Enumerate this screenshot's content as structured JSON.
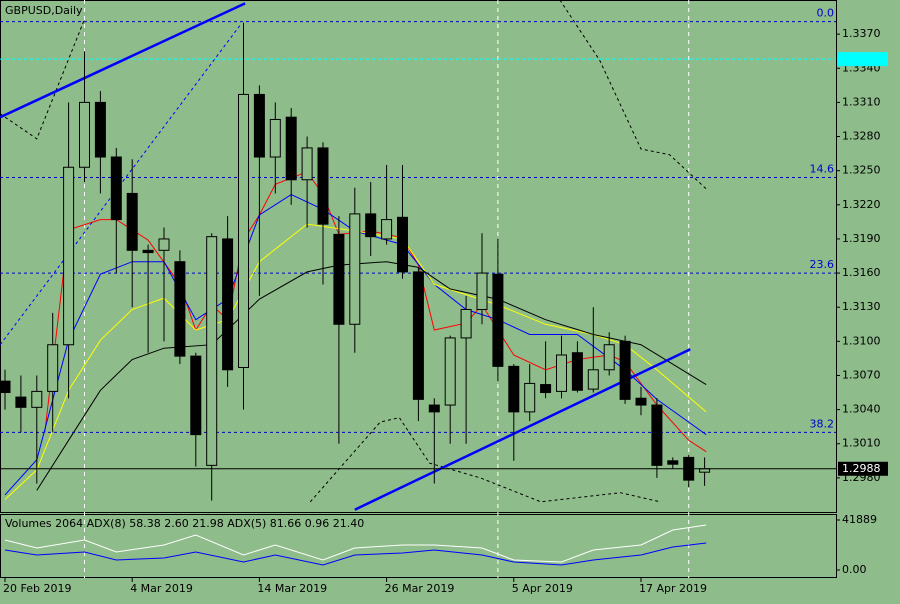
{
  "chart_data": [
    {
      "type": "candlestick",
      "title": "GBPUSD,Daily",
      "categories": [
        "20 Feb 2019",
        null,
        null,
        null,
        null,
        null,
        null,
        null,
        "4 Mar 2019",
        null,
        null,
        null,
        null,
        null,
        null,
        null,
        "14 Mar 2019",
        null,
        null,
        null,
        null,
        null,
        null,
        null,
        "26 Mar 2019",
        null,
        null,
        null,
        null,
        null,
        null,
        null,
        "5 Apr 2019",
        null,
        null,
        null,
        null,
        null,
        null,
        null,
        "17 Apr 2019",
        null,
        null,
        null,
        null
      ],
      "open": [
        1.3065,
        1.3051,
        1.3042,
        1.3056,
        1.3097,
        1.3253,
        1.331,
        1.3262,
        1.323,
        1.318,
        1.318,
        1.317,
        1.3087,
        1.2991,
        1.319,
        1.3077,
        1.3317,
        1.3262,
        1.3297,
        1.3242,
        1.327,
        1.3194,
        1.3115,
        1.3212,
        1.319,
        1.3209,
        1.3161,
        1.3044,
        1.3044,
        1.3103,
        1.3128,
        1.3159,
        1.3078,
        1.3038,
        1.3062,
        1.3056,
        1.309,
        1.3058,
        1.3075,
        1.31,
        1.305,
        1.3044,
        1.2995,
        1.2998,
        1.2985
      ],
      "high": [
        1.3075,
        1.307,
        1.307,
        1.3125,
        1.331,
        1.3355,
        1.332,
        1.327,
        1.326,
        1.3185,
        1.32,
        1.318,
        1.309,
        1.3195,
        1.321,
        1.338,
        1.3325,
        1.331,
        1.3305,
        1.328,
        1.3275,
        1.321,
        1.3235,
        1.324,
        1.3255,
        1.3255,
        1.3165,
        1.305,
        1.3105,
        1.314,
        1.3195,
        1.319,
        1.308,
        1.308,
        1.31,
        1.3105,
        1.31,
        1.313,
        1.3108,
        1.3105,
        1.306,
        1.305,
        1.2998,
        1.3,
        1.2998
      ],
      "low": [
        1.304,
        1.302,
        1.2975,
        1.302,
        1.305,
        1.324,
        1.323,
        1.316,
        1.313,
        1.309,
        1.31,
        1.308,
        1.299,
        1.296,
        1.306,
        1.304,
        1.314,
        1.323,
        1.322,
        1.32,
        1.315,
        1.301,
        1.309,
        1.3175,
        1.3185,
        1.3155,
        1.303,
        1.2975,
        1.301,
        1.301,
        1.3115,
        1.3065,
        1.2995,
        1.303,
        1.305,
        1.305,
        1.3055,
        1.3055,
        1.307,
        1.3045,
        1.3035,
        1.298,
        1.2988,
        1.2972,
        1.2973
      ],
      "close": [
        1.3055,
        1.3042,
        1.3056,
        1.3097,
        1.3253,
        1.331,
        1.3262,
        1.3207,
        1.318,
        1.3178,
        1.319,
        1.3087,
        1.3018,
        1.3192,
        1.3075,
        1.3317,
        1.3262,
        1.3295,
        1.3242,
        1.327,
        1.3203,
        1.3115,
        1.3212,
        1.3192,
        1.3207,
        1.3161,
        1.3049,
        1.3038,
        1.3103,
        1.3128,
        1.316,
        1.3078,
        1.3038,
        1.3063,
        1.3055,
        1.3088,
        1.3057,
        1.3075,
        1.3097,
        1.3049,
        1.3044,
        1.2991,
        1.2992,
        1.2978,
        1.2988
      ],
      "ylim": [
        1.295,
        1.34
      ],
      "yticks": [
        {
          "value": 1.298,
          "label": "1.2980"
        },
        {
          "value": 1.301,
          "label": "1.3010"
        },
        {
          "value": 1.304,
          "label": "1.3040"
        },
        {
          "value": 1.307,
          "label": "1.3070"
        },
        {
          "value": 1.31,
          "label": "1.3100"
        },
        {
          "value": 1.313,
          "label": "1.3130"
        },
        {
          "value": 1.316,
          "label": "1.3160"
        },
        {
          "value": 1.319,
          "label": "1.3190"
        },
        {
          "value": 1.322,
          "label": "1.3220"
        },
        {
          "value": 1.325,
          "label": "1.3250"
        },
        {
          "value": 1.328,
          "label": "1.3280"
        },
        {
          "value": 1.331,
          "label": "1.3310"
        },
        {
          "value": 1.334,
          "label": "1.3340"
        },
        {
          "value": 1.337,
          "label": "1.3370"
        }
      ],
      "separators": [
        5,
        31,
        43
      ],
      "fib_levels": [
        {
          "value": 1.3381,
          "label": "0.0"
        },
        {
          "value": 1.3244,
          "label": "14.6"
        },
        {
          "value": 1.316,
          "label": "23.6"
        },
        {
          "value": 1.302,
          "label": "38.2"
        }
      ],
      "last_price": {
        "value": 1.2988,
        "label": "1.2988"
      },
      "ask_price": 1.3348,
      "series": [
        {
          "color": "#ff0000",
          "dash": false,
          "x": [
            2.5,
            4,
            6,
            7,
            9,
            11,
            12,
            13,
            14,
            15,
            16,
            17,
            19,
            20,
            21,
            23,
            25,
            26,
            27,
            29,
            30,
            31,
            32,
            34,
            36,
            38,
            39,
            41,
            43,
            44.1
          ],
          "values": [
            1.302,
            1.3198,
            1.3207,
            1.3207,
            1.3189,
            1.315,
            1.311,
            1.3132,
            1.3119,
            1.3189,
            1.3211,
            1.3238,
            1.3249,
            1.3229,
            1.3194,
            1.3197,
            1.3191,
            1.3167,
            1.311,
            1.3116,
            1.3132,
            1.311,
            1.3088,
            1.3075,
            1.3084,
            1.3088,
            1.3082,
            1.3044,
            1.3013,
            1.3003
          ]
        },
        {
          "color": "#0000ff",
          "dash": false,
          "x": [
            0,
            2,
            4,
            6,
            8,
            10,
            12,
            14,
            16,
            18,
            20,
            22,
            25,
            27,
            29,
            31,
            33,
            36,
            39,
            41,
            44.1
          ],
          "values": [
            1.2965,
            1.2996,
            1.3101,
            1.3159,
            1.317,
            1.317,
            1.3119,
            1.3137,
            1.3211,
            1.3229,
            1.3216,
            1.3197,
            1.3185,
            1.315,
            1.3128,
            1.3119,
            1.3106,
            1.3106,
            1.3075,
            1.3049,
            1.3018
          ]
        },
        {
          "color": "#ffff00",
          "dash": false,
          "x": [
            0,
            2,
            4,
            6,
            8,
            10,
            12,
            14,
            16,
            19,
            22,
            25,
            27,
            31,
            34,
            37,
            39,
            41,
            44.1
          ],
          "values": [
            1.2961,
            1.2987,
            1.3057,
            1.3101,
            1.3128,
            1.3138,
            1.311,
            1.3119,
            1.317,
            1.3203,
            1.3197,
            1.319,
            1.315,
            1.3132,
            1.3115,
            1.3106,
            1.3097,
            1.3075,
            1.3038
          ]
        },
        {
          "color": "#000000",
          "dash": false,
          "x": [
            2,
            4,
            6,
            8,
            10,
            13,
            16,
            19,
            21,
            24,
            26,
            28,
            31,
            34,
            37,
            40,
            44.1
          ],
          "values": [
            1.2969,
            1.3013,
            1.3057,
            1.3084,
            1.3094,
            1.3097,
            1.3137,
            1.3161,
            1.3167,
            1.317,
            1.3165,
            1.3146,
            1.3137,
            1.3119,
            1.3106,
            1.3097,
            1.3062
          ]
        },
        {
          "color": "#000000",
          "dash": true,
          "x": [
            -0.3,
            2,
            5,
            6,
            34.9,
            37.4,
            40,
            41.8,
            44.1
          ],
          "values": [
            1.33,
            1.3278,
            1.3383,
            null,
            1.34,
            1.3347,
            1.3269,
            1.3264,
            1.3234
          ]
        },
        {
          "color": "#000000",
          "dash": true,
          "x": [
            19.2,
            23.6,
            24.8,
            26.7,
            29.9,
            33.7,
            38.7,
            41.2
          ],
          "values": [
            1.2959,
            1.3029,
            1.3033,
            1.2993,
            1.298,
            1.2959,
            1.2967,
            1.2959
          ]
        },
        {
          "color": "#0000ff",
          "dash": true,
          "x": [
            -0.3,
            14.8
          ],
          "values": [
            1.3097,
            1.3378
          ]
        }
      ],
      "trendlines": [
        {
          "color": "#0000ff",
          "x": [
            -0.3,
            15.1
          ],
          "values": [
            1.3297,
            1.3397
          ]
        },
        {
          "color": "#0000ff",
          "x": [
            22,
            43.1
          ],
          "values": [
            1.2952,
            1.3093
          ]
        }
      ]
    },
    {
      "type": "line",
      "title": "Volumes 2064 ADX(8) 58.38 2.60 21.98 ADX(5) 81.66 0.96 21.40",
      "ylim": [
        0,
        41889
      ],
      "yticks": [
        {
          "value": 0,
          "label": "0.00"
        },
        41889
      ],
      "series": [
        {
          "color": "#ffffff",
          "x": [
            0,
            2,
            5,
            7,
            10,
            12,
            15,
            17,
            20,
            22,
            25,
            27,
            30,
            32,
            35,
            37,
            40,
            42,
            44.1
          ],
          "values": [
            25133,
            18432,
            25133,
            15080,
            20944,
            29322,
            12567,
            20944,
            8378,
            18432,
            20944,
            20944,
            18432,
            8378,
            6702,
            16756,
            20944,
            33511,
            37700
          ]
        },
        {
          "color": "#0000ff",
          "x": [
            0,
            2,
            5,
            7,
            10,
            12,
            15,
            17,
            20,
            22,
            25,
            27,
            30,
            32,
            35,
            37,
            40,
            42,
            44.1
          ],
          "values": [
            16756,
            12567,
            15080,
            8378,
            10053,
            15080,
            6702,
            12567,
            4189,
            12567,
            14242,
            16756,
            12567,
            6702,
            4189,
            8378,
            12567,
            19269,
            22620
          ]
        }
      ]
    }
  ]
}
